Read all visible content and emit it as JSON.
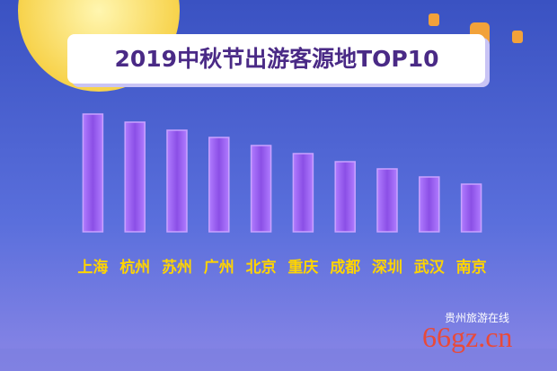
{
  "chart_data": {
    "type": "bar",
    "title": "2019中秋节出游客源地TOP10",
    "categories": [
      "上海",
      "杭州",
      "苏州",
      "广州",
      "北京",
      "重庆",
      "成都",
      "深圳",
      "武汉",
      "南京"
    ],
    "values": [
      131,
      122,
      113,
      105,
      96,
      87,
      78,
      70,
      61,
      53
    ],
    "color": "#8b4fe6",
    "label_color": "#ffd400"
  },
  "watermark": {
    "site": "66gz.cn",
    "name": "贵州旅游在线"
  }
}
